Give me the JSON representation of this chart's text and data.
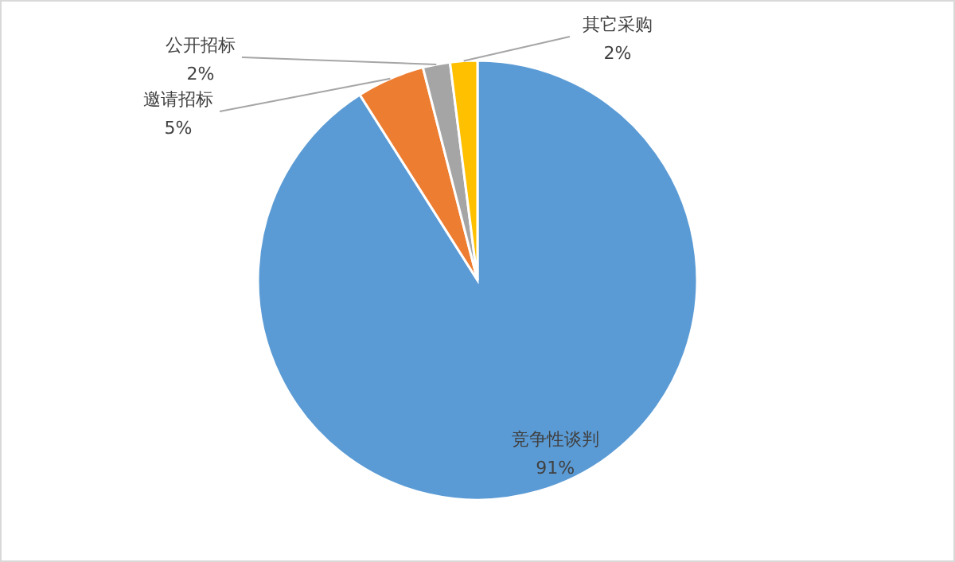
{
  "chart_data": {
    "type": "pie",
    "categories": [
      "竞争性谈判",
      "邀请招标",
      "公开招标",
      "其它采购"
    ],
    "values": [
      91,
      5,
      2,
      2
    ],
    "value_labels": [
      "91%",
      "5%",
      "2%",
      "2%"
    ],
    "colors": [
      "#5b9bd5",
      "#ed7d31",
      "#a5a5a5",
      "#ffc000"
    ]
  }
}
